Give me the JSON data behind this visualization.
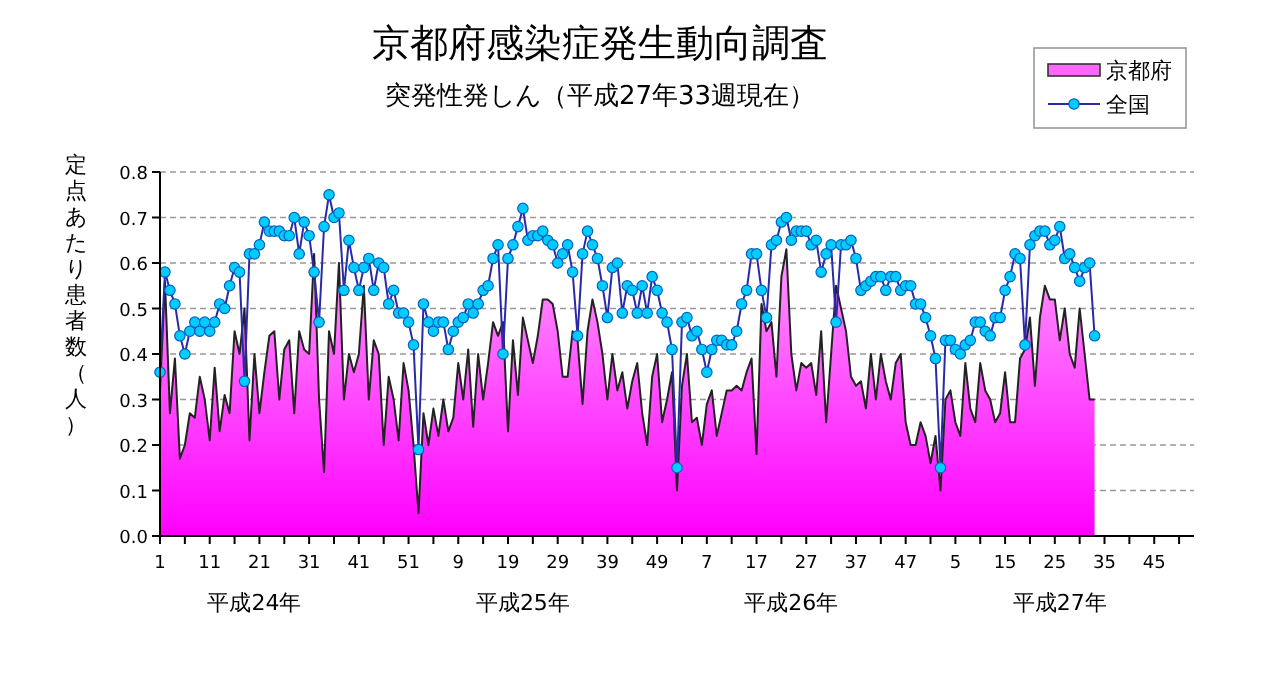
{
  "chart_data": {
    "type": "line",
    "title": "京都府感染症発生動向調査",
    "subtitle": "突発性発しん（平成27年33週現在）",
    "ylabel": "定点あたり患者数（人）",
    "categories": [
      "1",
      null,
      null,
      null,
      null,
      null,
      null,
      null,
      null,
      null,
      "11",
      null,
      null,
      null,
      null,
      null,
      null,
      null,
      null,
      null,
      "21",
      null,
      null,
      null,
      null,
      null,
      null,
      null,
      null,
      null,
      "31",
      null,
      null,
      null,
      null,
      null,
      null,
      null,
      null,
      null,
      "41",
      null,
      null,
      null,
      null,
      null,
      null,
      null,
      null,
      null,
      "51",
      null,
      null,
      null,
      null,
      null,
      null,
      null,
      null,
      null,
      "9",
      null,
      null,
      null,
      null,
      null,
      null,
      null,
      null,
      null,
      "19",
      null,
      null,
      null,
      null,
      null,
      null,
      null,
      null,
      null,
      "29",
      null,
      null,
      null,
      null,
      null,
      null,
      null,
      null,
      null,
      "39",
      null,
      null,
      null,
      null,
      null,
      null,
      null,
      null,
      null,
      "49",
      null,
      null,
      null,
      null,
      null,
      null,
      null,
      null,
      null,
      "7",
      null,
      null,
      null,
      null,
      null,
      null,
      null,
      null,
      null,
      "17",
      null,
      null,
      null,
      null,
      null,
      null,
      null,
      null,
      null,
      "27",
      null,
      null,
      null,
      null,
      null,
      null,
      null,
      null,
      null,
      "37",
      null,
      null,
      null,
      null,
      null,
      null,
      null,
      null,
      null,
      "47",
      null,
      null,
      null,
      null,
      null,
      null,
      null,
      null,
      null,
      "5",
      null,
      null,
      null,
      null,
      null,
      null,
      null,
      null,
      null,
      "15",
      null,
      null,
      null,
      null,
      null,
      null,
      null,
      null,
      null,
      "25",
      null,
      null,
      null,
      null,
      null,
      null,
      null,
      null,
      null,
      "35",
      null,
      null,
      null,
      null,
      null,
      null,
      null,
      null,
      null,
      "45",
      null,
      null,
      null,
      null,
      null,
      null,
      null,
      null
    ],
    "ylim": [
      0,
      0.8
    ],
    "yticks": [
      {
        "value": 0,
        "label": "0.0"
      },
      {
        "value": 0.1,
        "label": "0.1"
      },
      {
        "value": 0.2,
        "label": "0.2"
      },
      {
        "value": 0.3,
        "label": "0.3"
      },
      {
        "value": 0.4,
        "label": "0.4"
      },
      {
        "value": 0.5,
        "label": "0.5"
      },
      {
        "value": 0.6,
        "label": "0.6"
      },
      {
        "value": 0.7,
        "label": "0.7"
      },
      {
        "value": 0.8,
        "label": "0.8"
      }
    ],
    "grid": "y",
    "legend": "top right",
    "annotations": [
      "平成24年",
      "平成25年",
      "平成26年",
      "平成27年"
    ],
    "series": [
      {
        "name": "京都府",
        "type": "area",
        "color": "#ff00ff",
        "values": [
          0.32,
          0.56,
          0.27,
          0.39,
          0.17,
          0.2,
          0.27,
          0.26,
          0.35,
          0.3,
          0.21,
          0.37,
          0.23,
          0.31,
          0.27,
          0.45,
          0.4,
          0.5,
          0.21,
          0.4,
          0.27,
          0.36,
          0.44,
          0.45,
          0.3,
          0.41,
          0.43,
          0.27,
          0.45,
          0.41,
          0.4,
          0.62,
          0.3,
          0.14,
          0.45,
          0.4,
          0.6,
          0.3,
          0.4,
          0.36,
          0.4,
          0.55,
          0.3,
          0.43,
          0.4,
          0.2,
          0.35,
          0.3,
          0.21,
          0.38,
          0.32,
          0.2,
          0.05,
          0.27,
          0.2,
          0.28,
          0.22,
          0.3,
          0.23,
          0.26,
          0.38,
          0.3,
          0.41,
          0.24,
          0.4,
          0.3,
          0.38,
          0.47,
          0.44,
          0.47,
          0.23,
          0.43,
          0.31,
          0.48,
          0.43,
          0.38,
          0.44,
          0.52,
          0.52,
          0.51,
          0.45,
          0.35,
          0.35,
          0.45,
          0.43,
          0.29,
          0.45,
          0.52,
          0.47,
          0.4,
          0.3,
          0.4,
          0.32,
          0.36,
          0.28,
          0.34,
          0.38,
          0.27,
          0.2,
          0.35,
          0.4,
          0.25,
          0.3,
          0.36,
          0.1,
          0.33,
          0.4,
          0.25,
          0.26,
          0.2,
          0.29,
          0.32,
          0.22,
          0.27,
          0.32,
          0.32,
          0.33,
          0.32,
          0.36,
          0.39,
          0.18,
          0.51,
          0.45,
          0.47,
          0.35,
          0.57,
          0.63,
          0.4,
          0.32,
          0.38,
          0.37,
          0.38,
          0.31,
          0.45,
          0.25,
          0.4,
          0.55,
          0.5,
          0.45,
          0.35,
          0.33,
          0.34,
          0.28,
          0.4,
          0.3,
          0.4,
          0.34,
          0.3,
          0.38,
          0.4,
          0.25,
          0.2,
          0.2,
          0.25,
          0.22,
          0.16,
          0.22,
          0.1,
          0.3,
          0.32,
          0.25,
          0.22,
          0.38,
          0.28,
          0.25,
          0.38,
          0.32,
          0.3,
          0.25,
          0.27,
          0.36,
          0.25,
          0.25,
          0.39,
          0.41,
          0.48,
          0.33,
          0.48,
          0.55,
          0.52,
          0.52,
          0.43,
          0.5,
          0.4,
          0.37,
          0.5,
          0.4,
          0.3,
          0.3,
          null,
          null,
          null,
          null,
          null,
          null,
          null,
          null,
          null,
          null,
          null,
          null,
          null,
          null,
          null,
          null,
          null,
          null,
          null,
          null
        ]
      },
      {
        "name": "全国",
        "color": "#00ccff",
        "marker": "circle",
        "values": [
          0.36,
          0.58,
          0.54,
          0.51,
          0.44,
          0.4,
          0.45,
          0.47,
          0.45,
          0.47,
          0.45,
          0.47,
          0.51,
          0.5,
          0.55,
          0.59,
          0.58,
          0.34,
          0.62,
          0.62,
          0.64,
          0.69,
          0.67,
          0.67,
          0.67,
          0.66,
          0.66,
          0.7,
          0.62,
          0.69,
          0.66,
          0.58,
          0.47,
          0.68,
          0.75,
          0.7,
          0.71,
          0.54,
          0.65,
          0.59,
          0.54,
          0.59,
          0.61,
          0.54,
          0.6,
          0.59,
          0.51,
          0.54,
          0.49,
          0.49,
          0.47,
          0.42,
          0.19,
          0.51,
          0.47,
          0.45,
          0.47,
          0.47,
          0.41,
          0.45,
          0.47,
          0.48,
          0.51,
          0.49,
          0.51,
          0.54,
          0.55,
          0.61,
          0.64,
          0.4,
          0.61,
          0.64,
          0.68,
          0.72,
          0.65,
          0.66,
          0.66,
          0.67,
          0.65,
          0.64,
          0.6,
          0.62,
          0.64,
          0.58,
          0.44,
          0.62,
          0.67,
          0.64,
          0.61,
          0.55,
          0.48,
          0.59,
          0.6,
          0.49,
          0.55,
          0.54,
          0.49,
          0.55,
          0.49,
          0.57,
          0.54,
          0.49,
          0.47,
          0.41,
          0.15,
          0.47,
          0.48,
          0.44,
          0.45,
          0.41,
          0.36,
          0.41,
          0.43,
          0.43,
          0.42,
          0.42,
          0.45,
          0.51,
          0.54,
          0.62,
          0.62,
          0.54,
          0.48,
          0.64,
          0.65,
          0.69,
          0.7,
          0.65,
          0.67,
          0.67,
          0.67,
          0.64,
          0.65,
          0.58,
          0.62,
          0.64,
          0.47,
          0.64,
          0.64,
          0.65,
          0.61,
          0.54,
          0.55,
          0.56,
          0.57,
          0.57,
          0.54,
          0.57,
          0.57,
          0.54,
          0.55,
          0.55,
          0.51,
          0.51,
          0.48,
          0.44,
          0.39,
          0.15,
          0.43,
          0.43,
          0.41,
          0.4,
          0.42,
          0.43,
          0.47,
          0.47,
          0.45,
          0.44,
          0.48,
          0.48,
          0.54,
          0.57,
          0.62,
          0.61,
          0.42,
          0.64,
          0.66,
          0.67,
          0.67,
          0.64,
          0.65,
          0.68,
          0.61,
          0.62,
          0.59,
          0.56,
          0.59,
          0.6,
          0.44,
          null,
          null,
          null,
          null,
          null,
          null,
          null,
          null,
          null,
          null,
          null,
          null,
          null,
          null,
          null,
          null,
          null,
          null,
          null,
          null
        ]
      }
    ]
  }
}
